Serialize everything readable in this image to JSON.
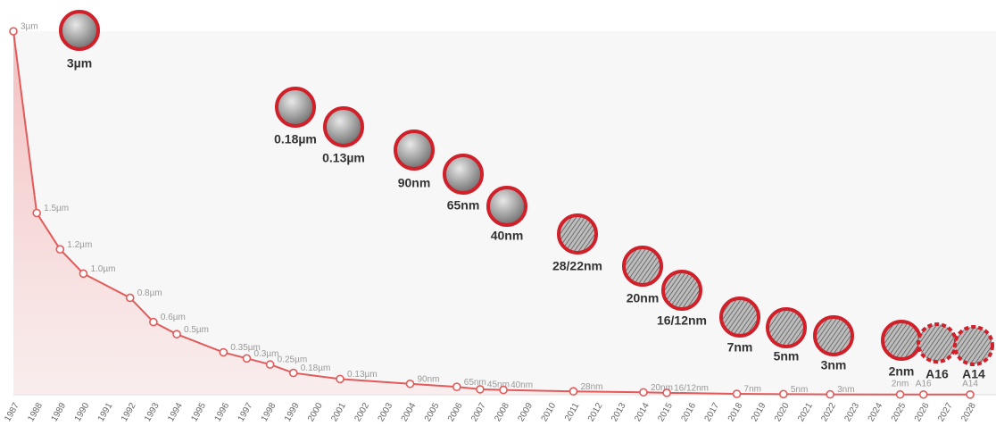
{
  "chart_data": {
    "type": "area",
    "x": [
      1987,
      1988,
      1989,
      1990,
      1992,
      1993,
      1994,
      1996,
      1997,
      1998,
      1999,
      2001,
      2004,
      2006,
      2007,
      2008,
      2011,
      2014,
      2015,
      2018,
      2020,
      2022,
      2025,
      2026,
      2028
    ],
    "values": [
      3,
      1.5,
      1.2,
      1.0,
      0.8,
      0.6,
      0.5,
      0.35,
      0.3,
      0.25,
      0.18,
      0.13,
      0.09,
      0.065,
      0.045,
      0.04,
      0.028,
      0.02,
      0.016,
      0.007,
      0.005,
      0.003,
      0.002,
      0.0016,
      0.0014
    ],
    "value_labels": [
      "3µm",
      "1.5µm",
      "1.2µm",
      "1.0µm",
      "0.8µm",
      "0.6µm",
      "0.5µm",
      "0.35µm",
      "0.3µm",
      "0.25µm",
      "0.18µm",
      "0.13µm",
      "90nm",
      "65nm",
      "45nm",
      "40nm",
      "28nm",
      "20nm",
      "16/12nm",
      "7nm",
      "5nm",
      "3nm",
      "2nm",
      "A16",
      "A14"
    ],
    "xlim": [
      1987,
      2028
    ],
    "xticks": [
      1987,
      1988,
      1989,
      1990,
      1991,
      1992,
      1993,
      1994,
      1995,
      1996,
      1997,
      1998,
      1999,
      2000,
      2001,
      2002,
      2003,
      2004,
      2005,
      2006,
      2007,
      2008,
      2009,
      2010,
      2011,
      2012,
      2013,
      2014,
      2015,
      2016,
      2017,
      2018,
      2019,
      2020,
      2021,
      2022,
      2023,
      2024,
      2025,
      2026,
      2027,
      2028
    ],
    "ylim": [
      0,
      3
    ],
    "color": "#e35a5a",
    "callouts": [
      "3µm",
      "0.18µm",
      "0.13µm",
      "90nm",
      "65nm",
      "40nm",
      "28/22nm",
      "20nm",
      "16/12nm",
      "7nm",
      "5nm",
      "3nm",
      "2nm",
      "A16",
      "A14"
    ]
  }
}
